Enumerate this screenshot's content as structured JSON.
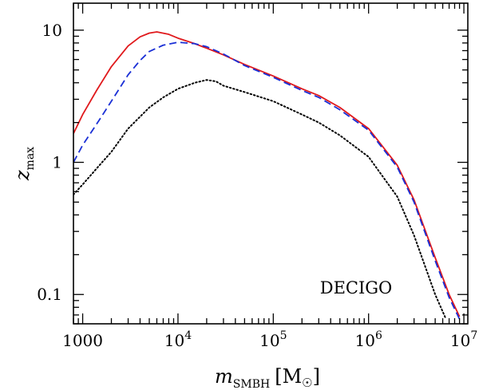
{
  "chart_data": {
    "type": "line",
    "title": "",
    "xscale": "log",
    "yscale": "log",
    "xlim": [
      800,
      11000000
    ],
    "ylim": [
      0.06,
      16
    ],
    "xlabel": {
      "symbol": "m",
      "subscript": "SMBH",
      "unit": "[M",
      "unit_close": "]"
    },
    "ylabel": {
      "symbol": "z",
      "subscript": "max"
    },
    "xticks": [
      {
        "value": 1000,
        "base": "1000",
        "exp": ""
      },
      {
        "value": 10000,
        "base": "10",
        "exp": "4"
      },
      {
        "value": 100000,
        "base": "10",
        "exp": "5"
      },
      {
        "value": 1000000,
        "base": "10",
        "exp": "6"
      },
      {
        "value": 10000000,
        "base": "10",
        "exp": "7"
      }
    ],
    "yticks": [
      {
        "value": 0.1,
        "label": "0.1"
      },
      {
        "value": 1,
        "label": "1"
      },
      {
        "value": 10,
        "label": "10"
      }
    ],
    "annotation": "DECIGO",
    "series": [
      {
        "name": "solid",
        "color": "#e0191c",
        "style": "solid",
        "points": [
          [
            800,
            1.65
          ],
          [
            1000,
            2.3
          ],
          [
            1400,
            3.5
          ],
          [
            2000,
            5.3
          ],
          [
            3000,
            7.6
          ],
          [
            4000,
            8.9
          ],
          [
            5000,
            9.5
          ],
          [
            6000,
            9.7
          ],
          [
            8000,
            9.3
          ],
          [
            10000,
            8.7
          ],
          [
            15000,
            7.9
          ],
          [
            20000,
            7.3
          ],
          [
            30000,
            6.5
          ],
          [
            50000,
            5.5
          ],
          [
            100000,
            4.5
          ],
          [
            200000,
            3.6
          ],
          [
            300000,
            3.2
          ],
          [
            500000,
            2.6
          ],
          [
            1000000,
            1.8
          ],
          [
            2000000,
            0.95
          ],
          [
            3000000,
            0.52
          ],
          [
            5000000,
            0.19
          ],
          [
            7000000,
            0.1
          ],
          [
            9000000,
            0.068
          ]
        ]
      },
      {
        "name": "dashed",
        "color": "#1a2fd6",
        "style": "dashed",
        "points": [
          [
            800,
            1.0
          ],
          [
            1000,
            1.35
          ],
          [
            1500,
            2.1
          ],
          [
            2000,
            2.9
          ],
          [
            3000,
            4.6
          ],
          [
            4000,
            5.9
          ],
          [
            5000,
            6.9
          ],
          [
            7000,
            7.7
          ],
          [
            10000,
            8.1
          ],
          [
            15000,
            7.9
          ],
          [
            20000,
            7.5
          ],
          [
            30000,
            6.6
          ],
          [
            50000,
            5.4
          ],
          [
            100000,
            4.4
          ],
          [
            200000,
            3.5
          ],
          [
            300000,
            3.1
          ],
          [
            500000,
            2.5
          ],
          [
            1000000,
            1.75
          ],
          [
            2000000,
            0.92
          ],
          [
            3000000,
            0.5
          ],
          [
            5000000,
            0.18
          ],
          [
            7000000,
            0.095
          ],
          [
            9000000,
            0.065
          ]
        ]
      },
      {
        "name": "dotted",
        "color": "#000000",
        "style": "dotted",
        "points": [
          [
            800,
            0.57
          ],
          [
            1000,
            0.68
          ],
          [
            1500,
            0.95
          ],
          [
            2000,
            1.2
          ],
          [
            3000,
            1.8
          ],
          [
            5000,
            2.6
          ],
          [
            7000,
            3.1
          ],
          [
            10000,
            3.6
          ],
          [
            15000,
            4.0
          ],
          [
            20000,
            4.2
          ],
          [
            25000,
            4.1
          ],
          [
            30000,
            3.8
          ],
          [
            50000,
            3.4
          ],
          [
            100000,
            2.9
          ],
          [
            200000,
            2.3
          ],
          [
            300000,
            2.0
          ],
          [
            500000,
            1.6
          ],
          [
            1000000,
            1.1
          ],
          [
            2000000,
            0.55
          ],
          [
            3000000,
            0.28
          ],
          [
            5000000,
            0.1
          ],
          [
            6500000,
            0.065
          ]
        ]
      }
    ]
  }
}
